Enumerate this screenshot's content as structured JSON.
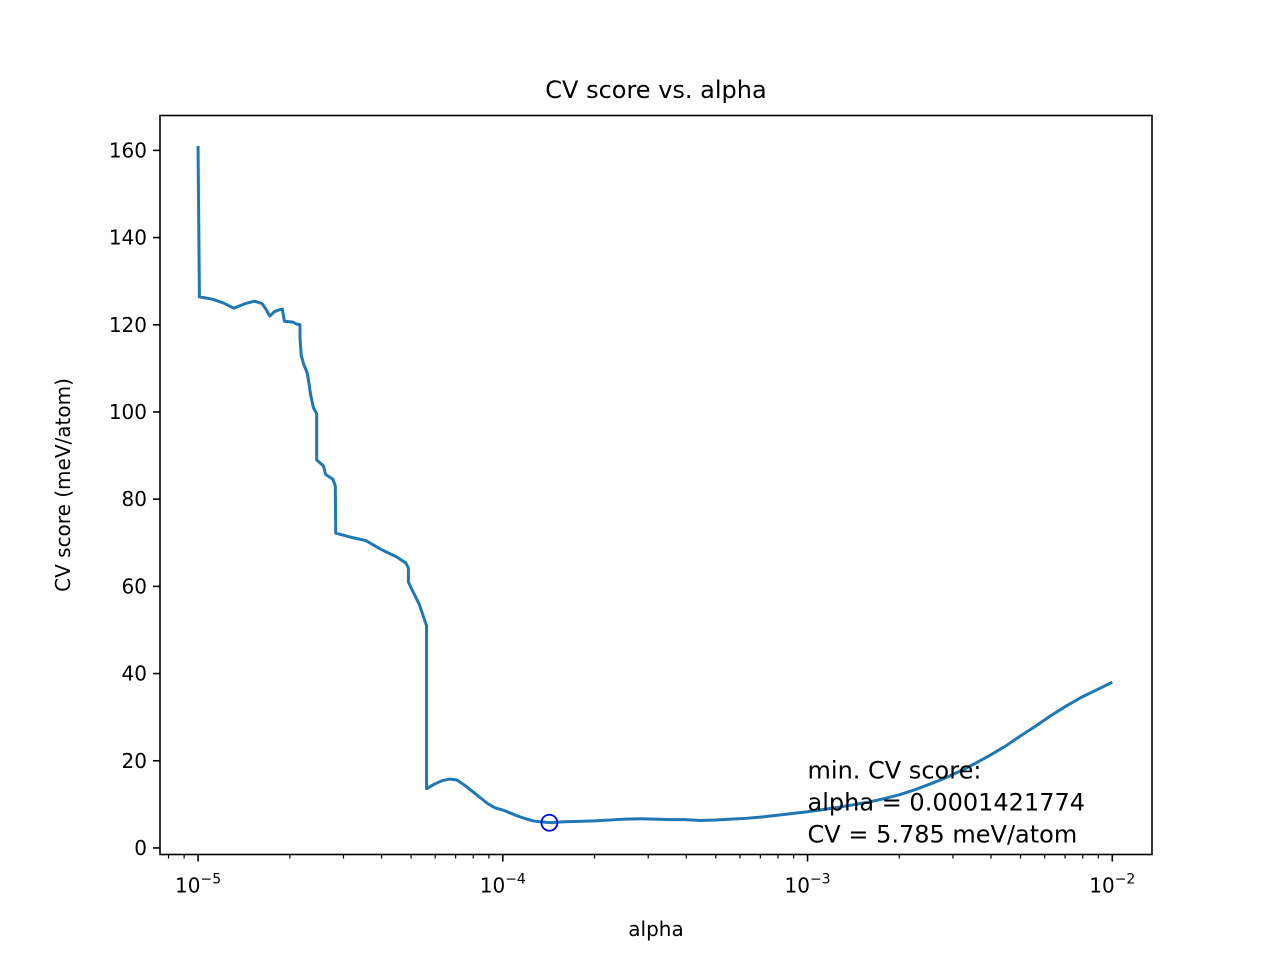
{
  "chart_data": {
    "type": "line",
    "title": "CV score vs. alpha",
    "xlabel": "alpha",
    "ylabel": "CV score (meV/atom)",
    "xscale": "log",
    "xlim": [
      7.5e-06,
      0.0135
    ],
    "ylim": [
      -1.5,
      168
    ],
    "grid": false,
    "xticks": [
      {
        "value": 1e-05,
        "base": "10",
        "exp": "−5"
      },
      {
        "value": 0.0001,
        "base": "10",
        "exp": "−4"
      },
      {
        "value": 0.001,
        "base": "10",
        "exp": "−3"
      },
      {
        "value": 0.01,
        "base": "10",
        "exp": "−2"
      }
    ],
    "yticks": [
      0,
      20,
      40,
      60,
      80,
      100,
      120,
      140,
      160
    ],
    "series": [
      {
        "color": "#1f77b4",
        "points": [
          [
            1e-05,
            161
          ],
          [
            1e-05,
            160
          ],
          [
            1.01e-05,
            127
          ],
          [
            1.01e-05,
            126.4
          ],
          [
            1.11e-05,
            125.9
          ],
          [
            1.21e-05,
            125.0
          ],
          [
            1.31e-05,
            123.8
          ],
          [
            1.42e-05,
            124.8
          ],
          [
            1.53e-05,
            125.4
          ],
          [
            1.62e-05,
            124.9
          ],
          [
            1.67e-05,
            123.6
          ],
          [
            1.72e-05,
            122.0
          ],
          [
            1.78e-05,
            123.0
          ],
          [
            1.84e-05,
            123.4
          ],
          [
            1.89e-05,
            123.6
          ],
          [
            1.92e-05,
            120.8
          ],
          [
            2.05e-05,
            120.6
          ],
          [
            2.1e-05,
            120.2
          ],
          [
            2.16e-05,
            120.0
          ],
          [
            2.16e-05,
            117
          ],
          [
            2.18e-05,
            113
          ],
          [
            2.22e-05,
            111
          ],
          [
            2.28e-05,
            109
          ],
          [
            2.31e-05,
            106.7
          ],
          [
            2.34e-05,
            104
          ],
          [
            2.39e-05,
            101
          ],
          [
            2.45e-05,
            99.6
          ],
          [
            2.45e-05,
            89
          ],
          [
            2.58e-05,
            87.6
          ],
          [
            2.62e-05,
            85.7
          ],
          [
            2.71e-05,
            85.0
          ],
          [
            2.77e-05,
            84.6
          ],
          [
            2.82e-05,
            83.0
          ],
          [
            2.83e-05,
            72.2
          ],
          [
            3.16e-05,
            71.3
          ],
          [
            3.55e-05,
            70.5
          ],
          [
            3.98e-05,
            68.5
          ],
          [
            4.47e-05,
            66.8
          ],
          [
            4.8e-05,
            65.4
          ],
          [
            4.9e-05,
            64.2
          ],
          [
            4.9e-05,
            61
          ],
          [
            5.02e-05,
            59.4
          ],
          [
            5.31e-05,
            56
          ],
          [
            5.62e-05,
            51
          ],
          [
            5.62e-05,
            13.6
          ],
          [
            5.95e-05,
            14.6
          ],
          [
            6.3e-05,
            15.4
          ],
          [
            6.68e-05,
            15.8
          ],
          [
            7.07e-05,
            15.6
          ],
          [
            7.49e-05,
            14.4
          ],
          [
            7.94e-05,
            13.0
          ],
          [
            8.41e-05,
            11.6
          ],
          [
            8.91e-05,
            10.2
          ],
          [
            9.43e-05,
            9.2
          ],
          [
            0.0001,
            8.7
          ],
          [
            0.000106,
            8.0
          ],
          [
            0.000112,
            7.3
          ],
          [
            0.000119,
            6.7
          ],
          [
            0.000126,
            6.2
          ],
          [
            0.000133,
            6.0
          ],
          [
            0.000142,
            5.8
          ],
          [
            0.00015,
            5.9
          ],
          [
            0.000159,
            6.0
          ],
          [
            0.000178,
            6.1
          ],
          [
            0.0002,
            6.2
          ],
          [
            0.000224,
            6.4
          ],
          [
            0.000251,
            6.6
          ],
          [
            0.000282,
            6.7
          ],
          [
            0.000316,
            6.6
          ],
          [
            0.000355,
            6.5
          ],
          [
            0.000398,
            6.5
          ],
          [
            0.000447,
            6.3
          ],
          [
            0.0005,
            6.4
          ],
          [
            0.000562,
            6.6
          ],
          [
            0.00063,
            6.8
          ],
          [
            0.000708,
            7.1
          ],
          [
            0.000794,
            7.5
          ],
          [
            0.000891,
            7.9
          ],
          [
            0.001,
            8.3
          ],
          [
            0.00112,
            8.8
          ],
          [
            0.00126,
            9.3
          ],
          [
            0.00141,
            9.9
          ],
          [
            0.00158,
            10.5
          ],
          [
            0.00178,
            11.3
          ],
          [
            0.002,
            12.2
          ],
          [
            0.00224,
            13.3
          ],
          [
            0.00251,
            14.6
          ],
          [
            0.00282,
            16.0
          ],
          [
            0.00316,
            17.6
          ],
          [
            0.00355,
            19.4
          ],
          [
            0.00398,
            21.3
          ],
          [
            0.00447,
            23.4
          ],
          [
            0.005,
            25.7
          ],
          [
            0.00562,
            28.0
          ],
          [
            0.0063,
            30.4
          ],
          [
            0.00708,
            32.6
          ],
          [
            0.00794,
            34.6
          ],
          [
            0.00891,
            36.3
          ],
          [
            0.01,
            38.0
          ]
        ]
      }
    ],
    "marker": {
      "x": 0.0001421774,
      "y": 5.785,
      "style": "open-circle",
      "color": "#0000ff"
    },
    "annotation": {
      "x": 0.001,
      "y": 1.2,
      "lines": [
        "min. CV score:",
        "alpha = 0.0001421774",
        "CV = 5.785 meV/atom"
      ]
    }
  }
}
